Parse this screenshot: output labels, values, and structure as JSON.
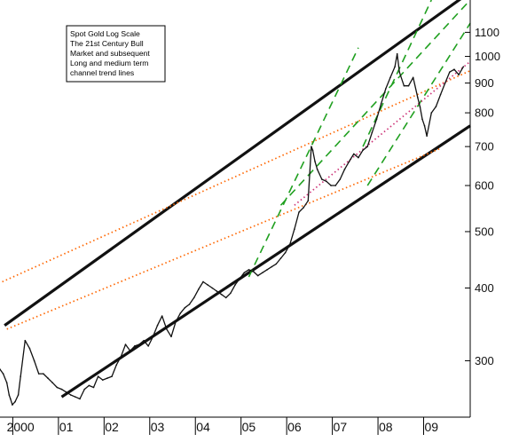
{
  "chart_data": {
    "type": "line",
    "annotation_lines": [
      "Spot Gold Log Scale",
      "The 21st Century Bull",
      "Market and subsequent",
      "Long and medium term",
      "channel trend lines"
    ],
    "y_scale": "log",
    "ylim": [
      240,
      1250
    ],
    "y_ticks": [
      300,
      400,
      500,
      600,
      700,
      800,
      900,
      1000,
      1100
    ],
    "xlim": [
      1999.55,
      2009.85
    ],
    "x_tick_labels": [
      {
        "label": "2000",
        "x": 2000.0
      },
      {
        "label": "01",
        "x": 2001.0
      },
      {
        "label": "02",
        "x": 2002.0
      },
      {
        "label": "03",
        "x": 2003.0
      },
      {
        "label": "04",
        "x": 2004.0
      },
      {
        "label": "05",
        "x": 2005.0
      },
      {
        "label": "06",
        "x": 2006.0
      },
      {
        "label": "07",
        "x": 2007.0
      },
      {
        "label": "08",
        "x": 2008.0
      },
      {
        "label": "09",
        "x": 2009.0
      }
    ],
    "x_dividers": [
      1999.83,
      2000.83,
      2001.83,
      2002.83,
      2003.83,
      2004.83,
      2005.83,
      2006.83,
      2007.83,
      2008.83
    ],
    "series": [
      {
        "color": "#111111",
        "x": [
          1999.55,
          1999.62,
          1999.7,
          1999.75,
          1999.78,
          1999.82,
          1999.88,
          1999.95,
          2000.0,
          2000.1,
          2000.2,
          2000.3,
          2000.4,
          2000.5,
          2000.6,
          2000.7,
          2000.8,
          2000.9,
          2001.0,
          2001.1,
          2001.2,
          2001.3,
          2001.4,
          2001.5,
          2001.6,
          2001.7,
          2001.8,
          2001.9,
          2002.0,
          2002.1,
          2002.2,
          2002.3,
          2002.4,
          2002.5,
          2002.6,
          2002.7,
          2002.8,
          2002.9,
          2003.0,
          2003.1,
          2003.2,
          2003.3,
          2003.4,
          2003.5,
          2003.6,
          2003.7,
          2003.8,
          2003.9,
          2004.0,
          2004.1,
          2004.2,
          2004.3,
          2004.4,
          2004.5,
          2004.6,
          2004.7,
          2004.8,
          2004.9,
          2005.0,
          2005.1,
          2005.2,
          2005.3,
          2005.4,
          2005.5,
          2005.6,
          2005.7,
          2005.8,
          2005.9,
          2006.0,
          2006.1,
          2006.2,
          2006.3,
          2006.37,
          2006.4,
          2006.45,
          2006.5,
          2006.6,
          2006.7,
          2006.8,
          2006.9,
          2007.0,
          2007.1,
          2007.2,
          2007.3,
          2007.4,
          2007.5,
          2007.6,
          2007.7,
          2007.8,
          2007.9,
          2008.0,
          2008.1,
          2008.2,
          2008.25,
          2008.3,
          2008.4,
          2008.5,
          2008.6,
          2008.7,
          2008.75,
          2008.8,
          2008.85,
          2008.9,
          2009.0,
          2009.1,
          2009.2,
          2009.3,
          2009.4,
          2009.5,
          2009.6,
          2009.7
        ],
        "y": [
          290,
          285,
          275,
          262,
          258,
          252,
          255,
          262,
          282,
          325,
          315,
          300,
          285,
          285,
          280,
          275,
          270,
          268,
          265,
          262,
          260,
          258,
          268,
          272,
          270,
          282,
          278,
          280,
          282,
          295,
          305,
          320,
          312,
          318,
          320,
          325,
          318,
          330,
          345,
          358,
          340,
          330,
          350,
          362,
          370,
          375,
          385,
          398,
          410,
          405,
          400,
          395,
          390,
          385,
          392,
          405,
          415,
          425,
          430,
          427,
          420,
          425,
          430,
          435,
          440,
          450,
          460,
          475,
          505,
          540,
          550,
          565,
          700,
          690,
          660,
          640,
          615,
          610,
          600,
          600,
          615,
          640,
          660,
          680,
          670,
          690,
          700,
          740,
          780,
          830,
          880,
          920,
          960,
          1010,
          940,
          890,
          890,
          920,
          850,
          820,
          780,
          760,
          730,
          800,
          820,
          860,
          900,
          940,
          950,
          930,
          960
        ]
      }
    ],
    "trend_lines": [
      {
        "color": "#111111",
        "style": "solid",
        "x": [
          1999.65,
          2009.85
        ],
        "y": [
          345,
          1290
        ]
      },
      {
        "color": "#111111",
        "style": "solid",
        "x": [
          2000.9,
          2009.85
        ],
        "y": [
          260,
          760
        ]
      },
      {
        "color": "#ff6600",
        "style": "dotted",
        "x": [
          1999.6,
          2009.85
        ],
        "y": [
          410,
          945
        ]
      },
      {
        "color": "#ff6600",
        "style": "dotted",
        "x": [
          1999.7,
          2009.2
        ],
        "y": [
          340,
          695
        ]
      },
      {
        "color": "#20a020",
        "style": "dashed",
        "x": [
          2005.0,
          2007.4
        ],
        "y": [
          418,
          1035
        ]
      },
      {
        "color": "#20a020",
        "style": "dashed",
        "x": [
          2007.5,
          2009.0
        ],
        "y": [
          700,
          1250
        ]
      },
      {
        "color": "#20a020",
        "style": "dashed",
        "x": [
          2005.7,
          2009.85
        ],
        "y": [
          555,
          1250
        ]
      },
      {
        "color": "#20a020",
        "style": "dashed",
        "x": [
          2007.6,
          2009.85
        ],
        "y": [
          600,
          1140
        ]
      },
      {
        "color": "#cc3377",
        "style": "dotted",
        "x": [
          2006.0,
          2009.85
        ],
        "y": [
          555,
          980
        ]
      }
    ],
    "grid": false
  }
}
